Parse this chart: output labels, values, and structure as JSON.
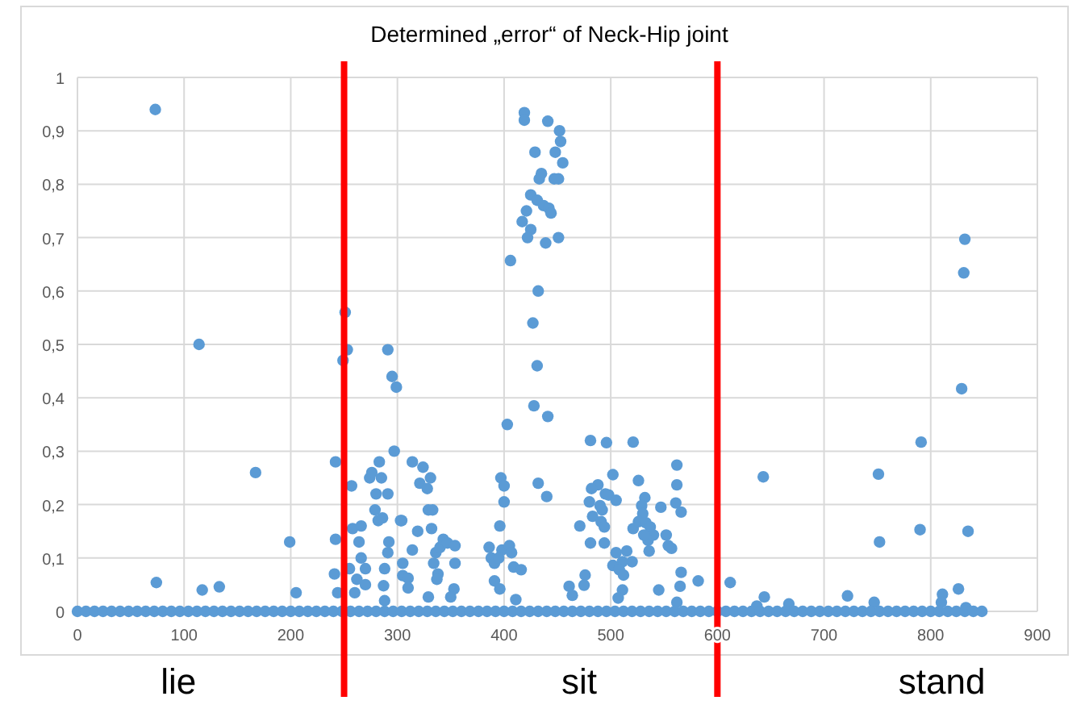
{
  "chart_data": {
    "type": "scatter",
    "title": "Determined „error“ of  Neck-Hip joint",
    "xlim": [
      0,
      900
    ],
    "xticks": [
      0,
      100,
      200,
      300,
      400,
      500,
      600,
      700,
      800,
      900
    ],
    "ylim": [
      0,
      1
    ],
    "yticks": [
      0,
      {
        "value": 0.1,
        "label": "0,1"
      },
      {
        "value": 0.2,
        "label": "0,2"
      },
      {
        "value": 0.3,
        "label": "0,3"
      },
      {
        "value": 0.4,
        "label": "0,4"
      },
      {
        "value": 0.5,
        "label": "0,5"
      },
      {
        "value": 0.6,
        "label": "0,6"
      },
      {
        "value": 0.7,
        "label": "0,7"
      },
      {
        "value": 0.8,
        "label": "0,8"
      },
      {
        "value": 0.9,
        "label": "0,9"
      },
      1
    ],
    "grid": true,
    "marker": "circle",
    "series": [
      {
        "color": "#5b9bd5",
        "x": [
          73,
          74,
          114,
          117,
          133,
          167,
          199,
          205,
          242,
          242,
          241,
          244,
          251,
          253,
          249,
          257,
          255,
          258,
          266,
          264,
          266,
          262,
          260,
          270,
          270,
          274,
          276,
          280,
          279,
          283,
          285,
          282,
          286,
          291,
          291,
          295,
          299,
          297,
          292,
          291,
          288,
          287,
          288,
          303,
          305,
          419,
          419,
          441,
          452,
          453,
          448,
          455,
          429,
          435,
          433,
          447,
          451,
          425,
          431,
          437,
          442,
          444,
          421,
          417,
          425,
          422,
          439,
          451,
          406,
          432,
          427,
          431,
          428,
          441,
          403,
          432,
          440,
          397,
          400,
          400,
          396,
          398,
          405,
          407,
          386,
          388,
          391,
          395,
          409,
          416,
          391,
          396,
          411,
          314,
          324,
          321,
          328,
          331,
          329,
          333,
          304,
          319,
          314,
          332,
          336,
          340,
          334,
          338,
          337,
          343,
          347,
          354,
          354,
          305,
          310,
          310,
          329,
          353,
          350,
          481,
          496,
          521,
          562,
          562,
          561,
          566,
          547,
          502,
          526,
          488,
          482,
          495,
          498,
          505,
          480,
          490,
          492,
          532,
          529,
          530,
          471,
          483,
          491,
          494,
          521,
          526,
          533,
          537,
          540,
          535,
          531,
          552,
          554,
          557,
          536,
          481,
          494,
          505,
          515,
          520,
          511,
          502,
          508,
          512,
          511,
          507,
          476,
          475,
          461,
          464,
          545,
          566,
          565,
          582,
          562,
          612,
          832,
          831,
          829,
          791,
          751,
          643,
          752,
          790,
          835,
          644,
          667,
          637,
          722,
          747,
          811,
          810,
          826,
          833
        ],
        "values": [
          0.94,
          0.054,
          0.5,
          0.04,
          0.046,
          0.26,
          0.13,
          0.035,
          0.28,
          0.135,
          0.07,
          0.035,
          0.56,
          0.49,
          0.47,
          0.235,
          0.08,
          0.155,
          0.16,
          0.13,
          0.1,
          0.06,
          0.035,
          0.08,
          0.05,
          0.25,
          0.26,
          0.22,
          0.19,
          0.28,
          0.25,
          0.17,
          0.175,
          0.22,
          0.49,
          0.44,
          0.42,
          0.3,
          0.13,
          0.11,
          0.08,
          0.048,
          0.02,
          0.17,
          0.09,
          0.934,
          0.92,
          0.918,
          0.9,
          0.88,
          0.86,
          0.84,
          0.86,
          0.82,
          0.81,
          0.81,
          0.81,
          0.78,
          0.77,
          0.76,
          0.755,
          0.746,
          0.75,
          0.73,
          0.715,
          0.7,
          0.69,
          0.7,
          0.657,
          0.6,
          0.54,
          0.46,
          0.385,
          0.365,
          0.35,
          0.24,
          0.215,
          0.25,
          0.235,
          0.205,
          0.16,
          0.115,
          0.123,
          0.11,
          0.12,
          0.1,
          0.09,
          0.1,
          0.083,
          0.078,
          0.057,
          0.042,
          0.022,
          0.28,
          0.27,
          0.24,
          0.23,
          0.25,
          0.19,
          0.19,
          0.17,
          0.15,
          0.115,
          0.155,
          0.11,
          0.12,
          0.09,
          0.07,
          0.06,
          0.135,
          0.128,
          0.123,
          0.09,
          0.067,
          0.062,
          0.044,
          0.027,
          0.042,
          0.027,
          0.32,
          0.316,
          0.317,
          0.274,
          0.237,
          0.203,
          0.186,
          0.195,
          0.256,
          0.245,
          0.237,
          0.23,
          0.22,
          0.218,
          0.208,
          0.205,
          0.198,
          0.19,
          0.213,
          0.198,
          0.183,
          0.16,
          0.178,
          0.168,
          0.158,
          0.155,
          0.168,
          0.166,
          0.158,
          0.143,
          0.133,
          0.143,
          0.143,
          0.123,
          0.118,
          0.113,
          0.128,
          0.128,
          0.11,
          0.113,
          0.093,
          0.093,
          0.086,
          0.078,
          0.068,
          0.04,
          0.025,
          0.068,
          0.049,
          0.047,
          0.03,
          0.04,
          0.073,
          0.047,
          0.057,
          0.017,
          0.054,
          0.697,
          0.634,
          0.417,
          0.317,
          0.257,
          0.252,
          0.13,
          0.153,
          0.15,
          0.027,
          0.014,
          0.01,
          0.029,
          0.017,
          0.032,
          0.017,
          0.042,
          0.007
        ]
      },
      {
        "color": "#5b9bd5",
        "x": [
          0,
          8,
          16,
          24,
          32,
          40,
          48,
          56,
          64,
          72,
          80,
          88,
          96,
          104,
          112,
          120,
          128,
          136,
          144,
          152,
          160,
          168,
          176,
          184,
          192,
          200,
          208,
          216,
          224,
          232,
          240,
          248,
          256,
          264,
          272,
          280,
          288,
          296,
          304,
          312,
          320,
          328,
          336,
          344,
          352,
          360,
          368,
          376,
          384,
          392,
          400,
          408,
          416,
          424,
          432,
          440,
          448,
          456,
          464,
          472,
          480,
          488,
          496,
          504,
          512,
          520,
          528,
          536,
          544,
          552,
          560,
          568,
          576,
          584,
          592,
          600,
          608,
          616,
          624,
          632,
          640,
          648,
          656,
          664,
          672,
          680,
          688,
          696,
          704,
          712,
          720,
          728,
          736,
          744,
          752,
          760,
          768,
          776,
          784,
          792,
          800,
          808,
          816,
          824,
          832,
          840,
          848
        ],
        "values": [
          0,
          0,
          0,
          0,
          0,
          0,
          0,
          0,
          0,
          0,
          0,
          0,
          0,
          0,
          0,
          0,
          0,
          0,
          0,
          0,
          0,
          0,
          0,
          0,
          0,
          0,
          0,
          0,
          0,
          0,
          0,
          0,
          0,
          0,
          0,
          0,
          0,
          0,
          0,
          0,
          0,
          0,
          0,
          0,
          0,
          0,
          0,
          0,
          0,
          0,
          0,
          0,
          0,
          0,
          0,
          0,
          0,
          0,
          0,
          0,
          0,
          0,
          0,
          0,
          0,
          0,
          0,
          0,
          0,
          0,
          0,
          0,
          0,
          0,
          0,
          0,
          0,
          0,
          0,
          0,
          0,
          0,
          0,
          0,
          0,
          0,
          0,
          0,
          0,
          0,
          0,
          0,
          0,
          0,
          0,
          0,
          0,
          0,
          0,
          0,
          0,
          0,
          0,
          0,
          0,
          0,
          0
        ]
      }
    ],
    "ref_lines": [
      {
        "axis": "x",
        "value": 250,
        "color": "#ff0000"
      },
      {
        "axis": "x",
        "value": 600,
        "color": "#ff0000"
      }
    ],
    "annotations": [
      "lie",
      "sit",
      "stand"
    ]
  }
}
